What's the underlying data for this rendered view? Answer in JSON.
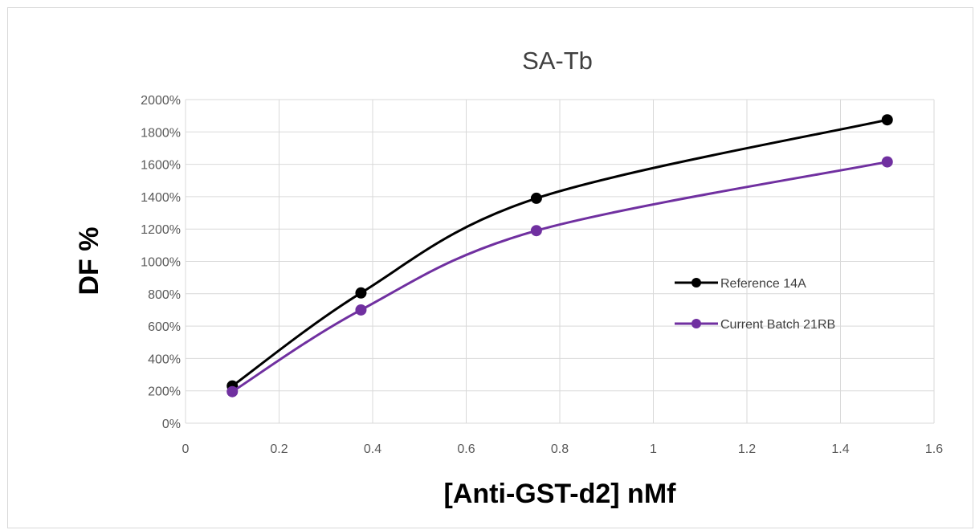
{
  "chart_data": {
    "type": "line",
    "title": "SA-Tb",
    "xlabel": "[Anti-GST-d2] nMf",
    "ylabel": "DF %",
    "xlim": [
      0,
      1.6
    ],
    "ylim": [
      0,
      2000
    ],
    "x_ticks": [
      "0",
      "0.2",
      "0.4",
      "0.6",
      "0.8",
      "1",
      "1.2",
      "1.4",
      "1.6"
    ],
    "y_ticks": [
      "0%",
      "200%",
      "400%",
      "600%",
      "800%",
      "1000%",
      "1200%",
      "1400%",
      "1600%",
      "1800%",
      "2000%"
    ],
    "grid": true,
    "legend_position": "right",
    "smoothed": true,
    "series": [
      {
        "name": "Reference 14A",
        "color": "#000000",
        "x": [
          0.1,
          0.375,
          0.75,
          1.5
        ],
        "y": [
          230,
          805,
          1390,
          1875
        ]
      },
      {
        "name": "Current Batch 21RB",
        "color": "#7030a0",
        "x": [
          0.1,
          0.375,
          0.75,
          1.5
        ],
        "y": [
          195,
          700,
          1190,
          1615
        ]
      }
    ]
  }
}
